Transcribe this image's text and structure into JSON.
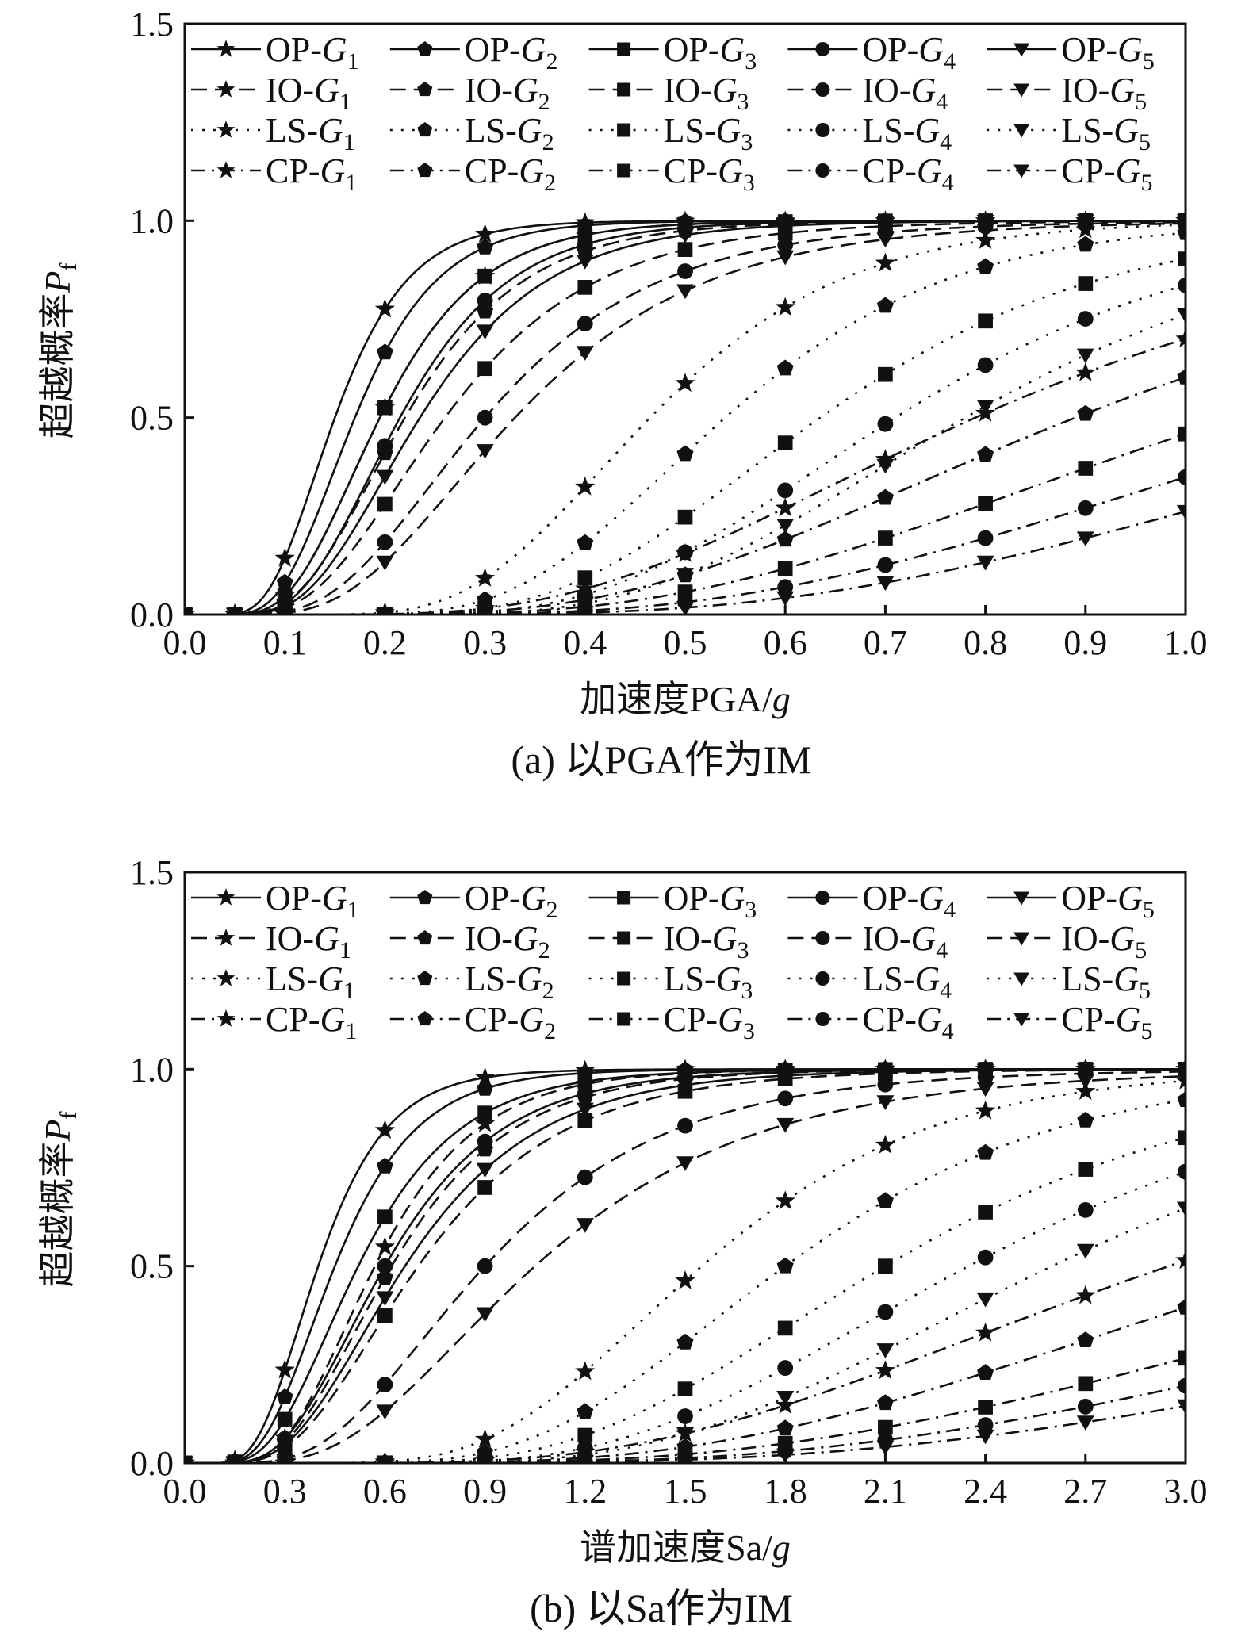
{
  "legend_rows": [
    {
      "state": "OP",
      "dash": "solid"
    },
    {
      "state": "IO",
      "dash": "dash"
    },
    {
      "state": "LS",
      "dash": "dot"
    },
    {
      "state": "CP",
      "dash": "dashdot"
    }
  ],
  "groups": [
    {
      "label": "G",
      "sub": "1",
      "marker": "star"
    },
    {
      "label": "G",
      "sub": "2",
      "marker": "pentagon"
    },
    {
      "label": "G",
      "sub": "3",
      "marker": "square"
    },
    {
      "label": "G",
      "sub": "4",
      "marker": "circle"
    },
    {
      "label": "G",
      "sub": "5",
      "marker": "triangle-down"
    }
  ],
  "chart_data": [
    {
      "id": "panel-a",
      "type": "line",
      "caption": "(a) 以PGA作为IM",
      "xlabel_prefix": "加速度PGA/",
      "xlabel_italic": "g",
      "ylabel_prefix": "超越概率",
      "ylabel_italic": "P",
      "ylabel_sub": "f",
      "xlim": [
        0.0,
        1.0
      ],
      "ylim": [
        0.0,
        1.5
      ],
      "xticks": [
        "0.0",
        "0.1",
        "0.2",
        "0.3",
        "0.4",
        "0.5",
        "0.6",
        "0.7",
        "0.8",
        "0.9",
        "1.0"
      ],
      "yticks": [
        "0.0",
        "0.5",
        "1.0",
        "1.5"
      ],
      "marker_x": [
        0.0,
        0.05,
        0.1,
        0.2,
        0.3,
        0.4,
        0.5,
        0.6,
        0.7,
        0.8,
        0.9,
        1.0
      ],
      "series": [
        {
          "name": "OP-G1",
          "state": "OP",
          "group": 0,
          "median": 0.15,
          "beta": 0.38
        },
        {
          "name": "OP-G2",
          "state": "OP",
          "group": 1,
          "median": 0.17,
          "beta": 0.38
        },
        {
          "name": "OP-G3",
          "state": "OP",
          "group": 2,
          "median": 0.195,
          "beta": 0.4
        },
        {
          "name": "OP-G4",
          "state": "OP",
          "group": 3,
          "median": 0.215,
          "beta": 0.4
        },
        {
          "name": "OP-G5",
          "state": "OP",
          "group": 4,
          "median": 0.235,
          "beta": 0.42
        },
        {
          "name": "IO-G1",
          "state": "IO",
          "group": 0,
          "median": 0.195,
          "beta": 0.4
        },
        {
          "name": "IO-G2",
          "state": "IO",
          "group": 1,
          "median": 0.22,
          "beta": 0.42
        },
        {
          "name": "IO-G3",
          "state": "IO",
          "group": 2,
          "median": 0.26,
          "beta": 0.45
        },
        {
          "name": "IO-G4",
          "state": "IO",
          "group": 3,
          "median": 0.3,
          "beta": 0.45
        },
        {
          "name": "IO-G5",
          "state": "IO",
          "group": 4,
          "median": 0.33,
          "beta": 0.45
        },
        {
          "name": "LS-G1",
          "state": "LS",
          "group": 0,
          "median": 0.465,
          "beta": 0.33
        },
        {
          "name": "LS-G2",
          "state": "LS",
          "group": 1,
          "median": 0.54,
          "beta": 0.33
        },
        {
          "name": "LS-G3",
          "state": "LS",
          "group": 2,
          "median": 0.635,
          "beta": 0.35
        },
        {
          "name": "LS-G4",
          "state": "LS",
          "group": 3,
          "median": 0.71,
          "beta": 0.35
        },
        {
          "name": "LS-G5",
          "state": "LS",
          "group": 4,
          "median": 0.78,
          "beta": 0.35
        },
        {
          "name": "CP-G1",
          "state": "CP",
          "group": 0,
          "median": 0.79,
          "beta": 0.45
        },
        {
          "name": "CP-G2",
          "state": "CP",
          "group": 1,
          "median": 0.89,
          "beta": 0.45
        },
        {
          "name": "CP-G3",
          "state": "CP",
          "group": 2,
          "median": 1.05,
          "beta": 0.47
        },
        {
          "name": "CP-G4",
          "state": "CP",
          "group": 3,
          "median": 1.2,
          "beta": 0.47
        },
        {
          "name": "CP-G5",
          "state": "CP",
          "group": 4,
          "median": 1.35,
          "beta": 0.47
        }
      ]
    },
    {
      "id": "panel-b",
      "type": "line",
      "caption": "(b) 以Sa作为IM",
      "xlabel_prefix": "谱加速度Sa/",
      "xlabel_italic": "g",
      "ylabel_prefix": "超越概率",
      "ylabel_italic": "P",
      "ylabel_sub": "f",
      "xlim": [
        0.0,
        3.0
      ],
      "ylim": [
        0.0,
        1.5
      ],
      "xticks": [
        "0.0",
        "0.3",
        "0.6",
        "0.9",
        "1.2",
        "1.5",
        "1.8",
        "2.1",
        "2.4",
        "2.7",
        "3.0"
      ],
      "yticks": [
        "0.0",
        "0.5",
        "1.0",
        "1.5"
      ],
      "marker_x": [
        0.0,
        0.15,
        0.3,
        0.6,
        0.9,
        1.2,
        1.5,
        1.8,
        2.1,
        2.4,
        2.7,
        3.0
      ],
      "series": [
        {
          "name": "OP-G1",
          "state": "OP",
          "group": 0,
          "median": 0.4,
          "beta": 0.4
        },
        {
          "name": "OP-G2",
          "state": "OP",
          "group": 1,
          "median": 0.45,
          "beta": 0.42
        },
        {
          "name": "OP-G3",
          "state": "OP",
          "group": 2,
          "median": 0.52,
          "beta": 0.45
        },
        {
          "name": "OP-G4",
          "state": "OP",
          "group": 3,
          "median": 0.6,
          "beta": 0.45
        },
        {
          "name": "OP-G5",
          "state": "OP",
          "group": 4,
          "median": 0.66,
          "beta": 0.47
        },
        {
          "name": "IO-G1",
          "state": "IO",
          "group": 0,
          "median": 0.57,
          "beta": 0.42
        },
        {
          "name": "IO-G2",
          "state": "IO",
          "group": 1,
          "median": 0.62,
          "beta": 0.45
        },
        {
          "name": "IO-G3",
          "state": "IO",
          "group": 2,
          "median": 0.7,
          "beta": 0.48
        },
        {
          "name": "IO-G4",
          "state": "IO",
          "group": 3,
          "median": 0.9,
          "beta": 0.48
        },
        {
          "name": "IO-G5",
          "state": "IO",
          "group": 4,
          "median": 1.05,
          "beta": 0.5
        },
        {
          "name": "LS-G1",
          "state": "LS",
          "group": 0,
          "median": 1.55,
          "beta": 0.35
        },
        {
          "name": "LS-G2",
          "state": "LS",
          "group": 1,
          "median": 1.8,
          "beta": 0.36
        },
        {
          "name": "LS-G3",
          "state": "LS",
          "group": 2,
          "median": 2.1,
          "beta": 0.38
        },
        {
          "name": "LS-G4",
          "state": "LS",
          "group": 3,
          "median": 2.35,
          "beta": 0.38
        },
        {
          "name": "LS-G5",
          "state": "LS",
          "group": 4,
          "median": 2.6,
          "beta": 0.38
        },
        {
          "name": "CP-G1",
          "state": "CP",
          "group": 0,
          "median": 2.95,
          "beta": 0.47
        },
        {
          "name": "CP-G2",
          "state": "CP",
          "group": 1,
          "median": 3.4,
          "beta": 0.47
        },
        {
          "name": "CP-G3",
          "state": "CP",
          "group": 2,
          "median": 4.1,
          "beta": 0.5
        },
        {
          "name": "CP-G4",
          "state": "CP",
          "group": 3,
          "median": 4.6,
          "beta": 0.5
        },
        {
          "name": "CP-G5",
          "state": "CP",
          "group": 4,
          "median": 5.2,
          "beta": 0.52
        }
      ]
    }
  ]
}
